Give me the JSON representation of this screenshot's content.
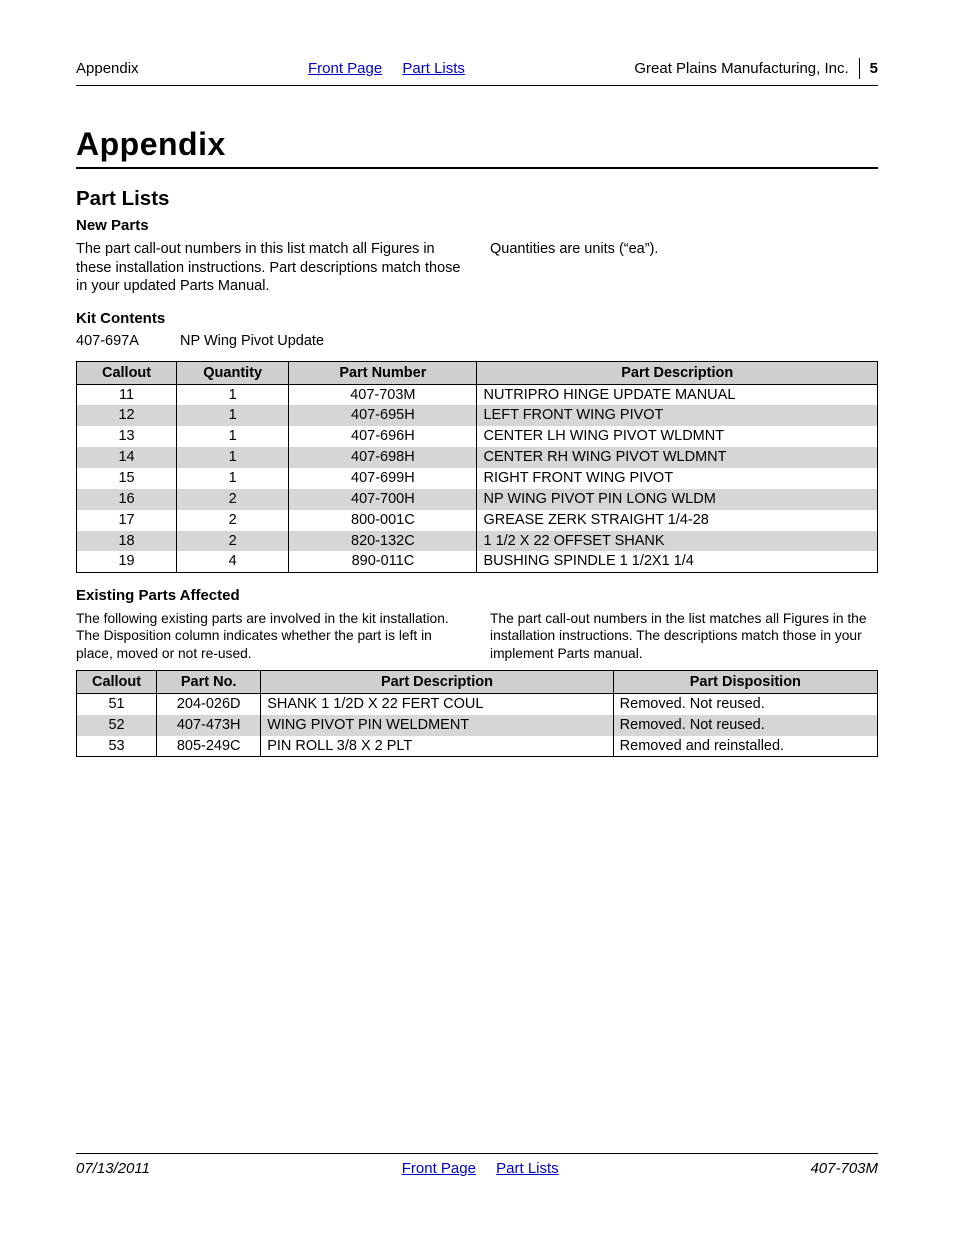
{
  "header": {
    "left": "Appendix",
    "link1": "Front Page",
    "link2": "Part Lists",
    "right_company": "Great Plains Manufacturing, Inc.",
    "page_number": "5"
  },
  "title": "Appendix",
  "section_title": "Part Lists",
  "newparts": {
    "heading": "New Parts",
    "col1": "The part call-out numbers in this list match all Figures in these installation instructions. Part descriptions match those in your updated Parts Manual.",
    "col2": "Quantities are units (“ea”)."
  },
  "kitcontents": {
    "heading": "Kit Contents",
    "number": "407-697A",
    "name": "NP Wing Pivot Update"
  },
  "table1": {
    "headers": [
      "Callout",
      "Quantity",
      "Part Number",
      "Part Description"
    ],
    "col_widths": [
      "12.5%",
      "14%",
      "23.5%",
      "50%"
    ],
    "col_align": [
      "center",
      "center",
      "center",
      "left"
    ],
    "rows": [
      [
        "11",
        "1",
        "407-703M",
        "NUTRIPRO HINGE UPDATE MANUAL"
      ],
      [
        "12",
        "1",
        "407-695H",
        "LEFT FRONT WING PIVOT"
      ],
      [
        "13",
        "1",
        "407-696H",
        "CENTER LH WING PIVOT WLDMNT"
      ],
      [
        "14",
        "1",
        "407-698H",
        "CENTER RH WING PIVOT WLDMNT"
      ],
      [
        "15",
        "1",
        "407-699H",
        "RIGHT FRONT WING PIVOT"
      ],
      [
        "16",
        "2",
        "407-700H",
        "NP WING PIVOT PIN LONG WLDM"
      ],
      [
        "17",
        "2",
        "800-001C",
        "GREASE ZERK STRAIGHT 1/4-28"
      ],
      [
        "18",
        "2",
        "820-132C",
        "1 1/2 X 22 OFFSET SHANK"
      ],
      [
        "19",
        "4",
        "890-011C",
        "BUSHING SPINDLE 1 1/2X1 1/4"
      ]
    ]
  },
  "existing": {
    "heading": "Existing Parts Affected",
    "col1": "The following existing parts are involved in the kit installation. The Disposition column indicates whether the part is left in place, moved or not re-used.",
    "col2": "The part call-out numbers in the list matches all Figures in the installation instructions. The descriptions match those in your implement Parts manual."
  },
  "table2": {
    "headers": [
      "Callout",
      "Part No.",
      "Part Description",
      "Part Disposition"
    ],
    "col_widths": [
      "10%",
      "13%",
      "44%",
      "33%"
    ],
    "col_align": [
      "center",
      "center",
      "left",
      "left"
    ],
    "rows": [
      [
        "51",
        "204-026D",
        "SHANK 1 1/2D X 22 FERT COUL",
        "Removed. Not reused."
      ],
      [
        "52",
        "407-473H",
        "WING PIVOT PIN WELDMENT",
        "Removed. Not reused."
      ],
      [
        "53",
        "805-249C",
        "PIN ROLL 3/8 X 2 PLT",
        "Removed and reinstalled."
      ]
    ]
  },
  "footer": {
    "date": "07/13/2011",
    "link1": "Front Page",
    "link2": "Part Lists",
    "docnum": "407-703M"
  },
  "colors": {
    "link": "#0000cc",
    "header_bg": "#cfcfcf",
    "row_alt": "#d6d6d6",
    "text": "#000000",
    "bg": "#ffffff"
  }
}
